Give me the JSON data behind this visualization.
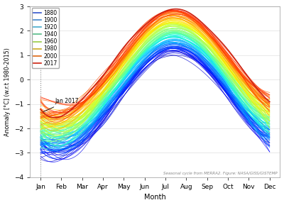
{
  "xlabel": "Month",
  "ylabel": "Anomaly [°C] (w.r.t 1980-2015)",
  "ylim": [
    -4,
    3
  ],
  "yticks": [
    -4,
    -3,
    -2,
    -1,
    0,
    1,
    2,
    3
  ],
  "months": [
    "Jan",
    "Feb",
    "Mar",
    "Apr",
    "May",
    "Jun",
    "Jul",
    "Aug",
    "Sep",
    "Oct",
    "Nov",
    "Dec"
  ],
  "year_start": 1880,
  "year_end": 2017,
  "legend_years": [
    1880,
    1900,
    1920,
    1940,
    1960,
    1980,
    2000,
    2017
  ],
  "legend_colors": [
    "#3355cc",
    "#4488cc",
    "#44aacc",
    "#55bb88",
    "#99cc44",
    "#ccaa22",
    "#dd6611",
    "#cc2211"
  ],
  "annotation_text": "Jan 2017",
  "footnote": "Seasonal cycle from MERRA2. Figure: NASA/GISS/GISTEMP",
  "bg_color": "#ffffff",
  "grid_color": "#e0e0e0",
  "seasonal_base": [
    -2.1,
    -2.3,
    -1.8,
    -0.8,
    0.3,
    1.4,
    2.1,
    2.0,
    1.3,
    0.2,
    -1.0,
    -1.8
  ],
  "warming_total": 1.8,
  "noise_scale": 0.18,
  "winter_spread_factor": 1.6
}
